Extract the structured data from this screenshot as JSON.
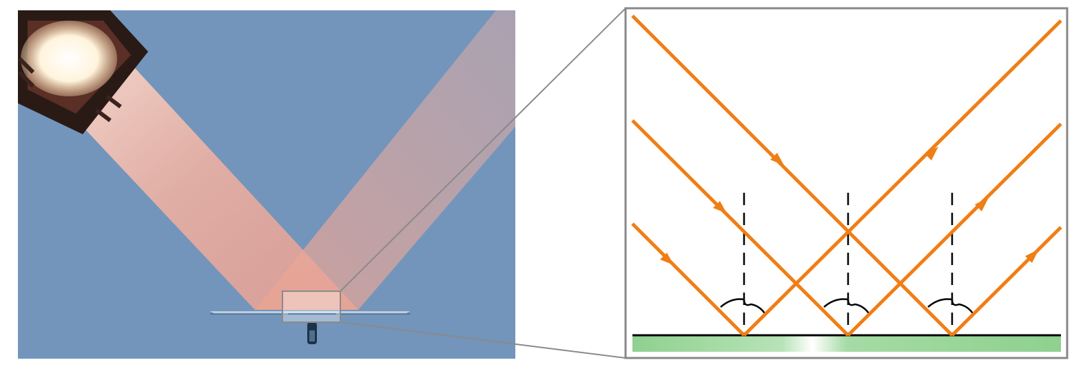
{
  "figure": {
    "photo": {
      "background_color": "#6f93b8",
      "beam_color": "#f6b9a6",
      "lamp_color": "#2a1a16"
    },
    "diagram": {
      "ray_color": "#f07e14",
      "normal_color": "#000000",
      "surface_color": "#000000",
      "mirror_gradient": [
        "#8fd08f",
        "#ffffff",
        "#8fd08f"
      ],
      "frame_color": "#888888"
    },
    "ray_count": 3,
    "normal_count": 3
  }
}
